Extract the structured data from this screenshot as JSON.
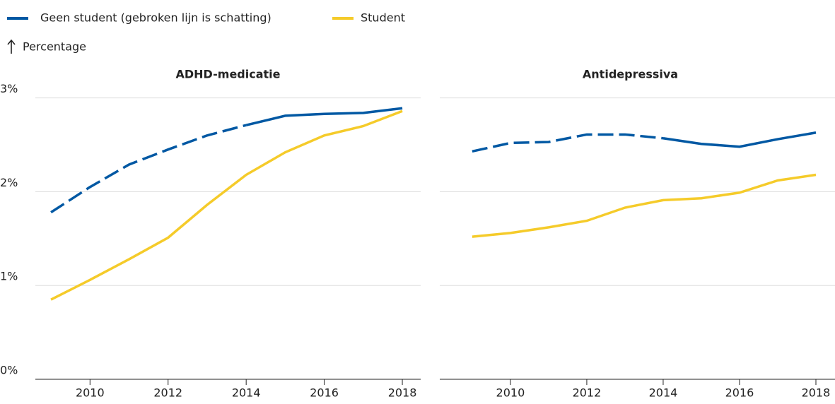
{
  "chart_data": [
    {
      "type": "line",
      "title": "ADHD-medicatie",
      "y_label": "Percentage",
      "x": [
        2009,
        2010,
        2011,
        2012,
        2013,
        2014,
        2015,
        2016,
        2017,
        2018
      ],
      "xlim": [
        2008.6,
        2018.47
      ],
      "xticks": [
        2010,
        2012,
        2014,
        2016,
        2018
      ],
      "ylim": [
        0,
        3.02
      ],
      "yticks": [
        {
          "value": 0,
          "label": "0%"
        },
        {
          "value": 1,
          "label": "1%"
        },
        {
          "value": 2,
          "label": "2%"
        },
        {
          "value": 3,
          "label": "3%"
        }
      ],
      "grid": true,
      "dashed_until_x": 2014,
      "series": [
        {
          "name": "Geen student (gebroken lijn is schatting)",
          "color": "#0058a3",
          "values": [
            1.78,
            2.05,
            2.29,
            2.45,
            2.6,
            2.71,
            2.81,
            2.83,
            2.84,
            2.89
          ]
        },
        {
          "name": "Student",
          "color": "#f5cb2a",
          "values": [
            0.85,
            1.06,
            1.28,
            1.51,
            1.86,
            2.18,
            2.42,
            2.6,
            2.7,
            2.86
          ]
        }
      ]
    },
    {
      "type": "line",
      "title": "Antidepressiva",
      "x": [
        2009,
        2010,
        2011,
        2012,
        2013,
        2014,
        2015,
        2016,
        2017,
        2018
      ],
      "xlim": [
        2008.15,
        2018.5
      ],
      "xticks": [
        2010,
        2012,
        2014,
        2016,
        2018
      ],
      "ylim": [
        0,
        3.02
      ],
      "yticks": [
        0,
        1,
        2,
        3
      ],
      "grid": true,
      "dashed_until_x": 2014,
      "series": [
        {
          "color": "#0058a3",
          "values": [
            2.43,
            2.52,
            2.53,
            2.61,
            2.61,
            2.57,
            2.51,
            2.48,
            2.56,
            2.63
          ]
        },
        {
          "color": "#f5cb2a",
          "values": [
            1.52,
            1.56,
            1.62,
            1.69,
            1.83,
            1.91,
            1.93,
            1.99,
            2.12,
            2.18
          ]
        }
      ]
    }
  ]
}
